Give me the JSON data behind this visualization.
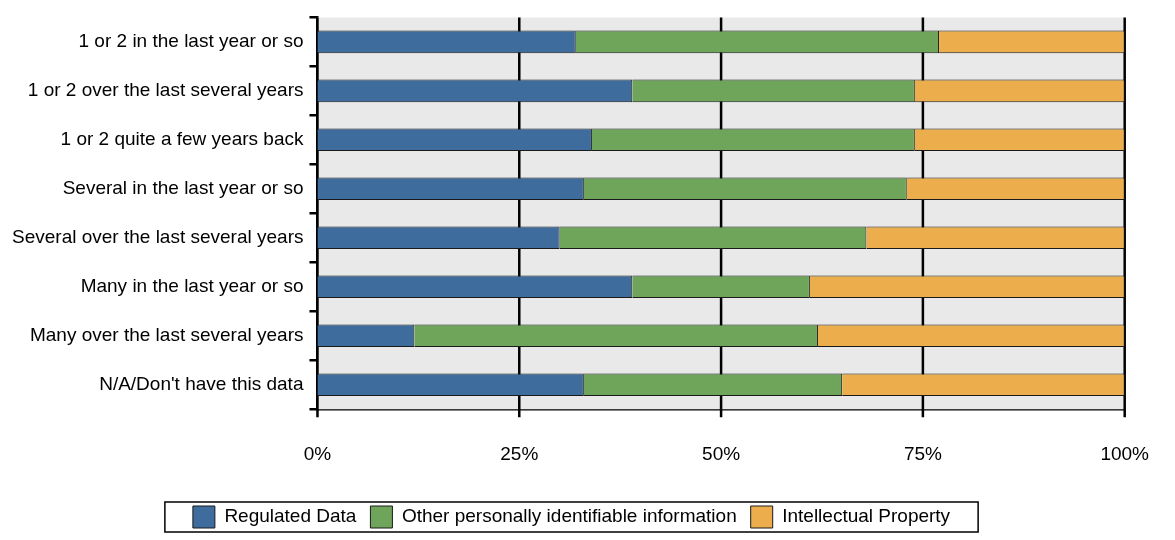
{
  "chart_data": {
    "type": "bar",
    "orientation": "horizontal",
    "stacked": true,
    "categories": [
      "1 or 2 in the last year or so",
      "1 or 2 over the last several years",
      "1 or 2 quite a few years back",
      "Several in the last year or so",
      "Several over the last several years",
      "Many in the last year or so",
      "Many over the last several years",
      "N/A/Don't have this data"
    ],
    "series": [
      {
        "name": "Regulated Data",
        "color": "#3d6c9d",
        "values": [
          32,
          39,
          34,
          33,
          30,
          39,
          12,
          33
        ]
      },
      {
        "name": "Other personally identifiable information",
        "color": "#6ea55a",
        "values": [
          45,
          35,
          40,
          40,
          38,
          22,
          50,
          32
        ]
      },
      {
        "name": "Intellectual Property",
        "color": "#ecae4c",
        "values": [
          23,
          26,
          26,
          27,
          32,
          39,
          38,
          35
        ]
      }
    ],
    "xlim": [
      0,
      100
    ],
    "xticks": [
      {
        "value": 0,
        "label": "0%"
      },
      {
        "value": 25,
        "label": "25%"
      },
      {
        "value": 50,
        "label": "50%"
      },
      {
        "value": 75,
        "label": "75%"
      },
      {
        "value": 100,
        "label": "100%"
      }
    ],
    "grid": "x",
    "legend": "bottom"
  }
}
